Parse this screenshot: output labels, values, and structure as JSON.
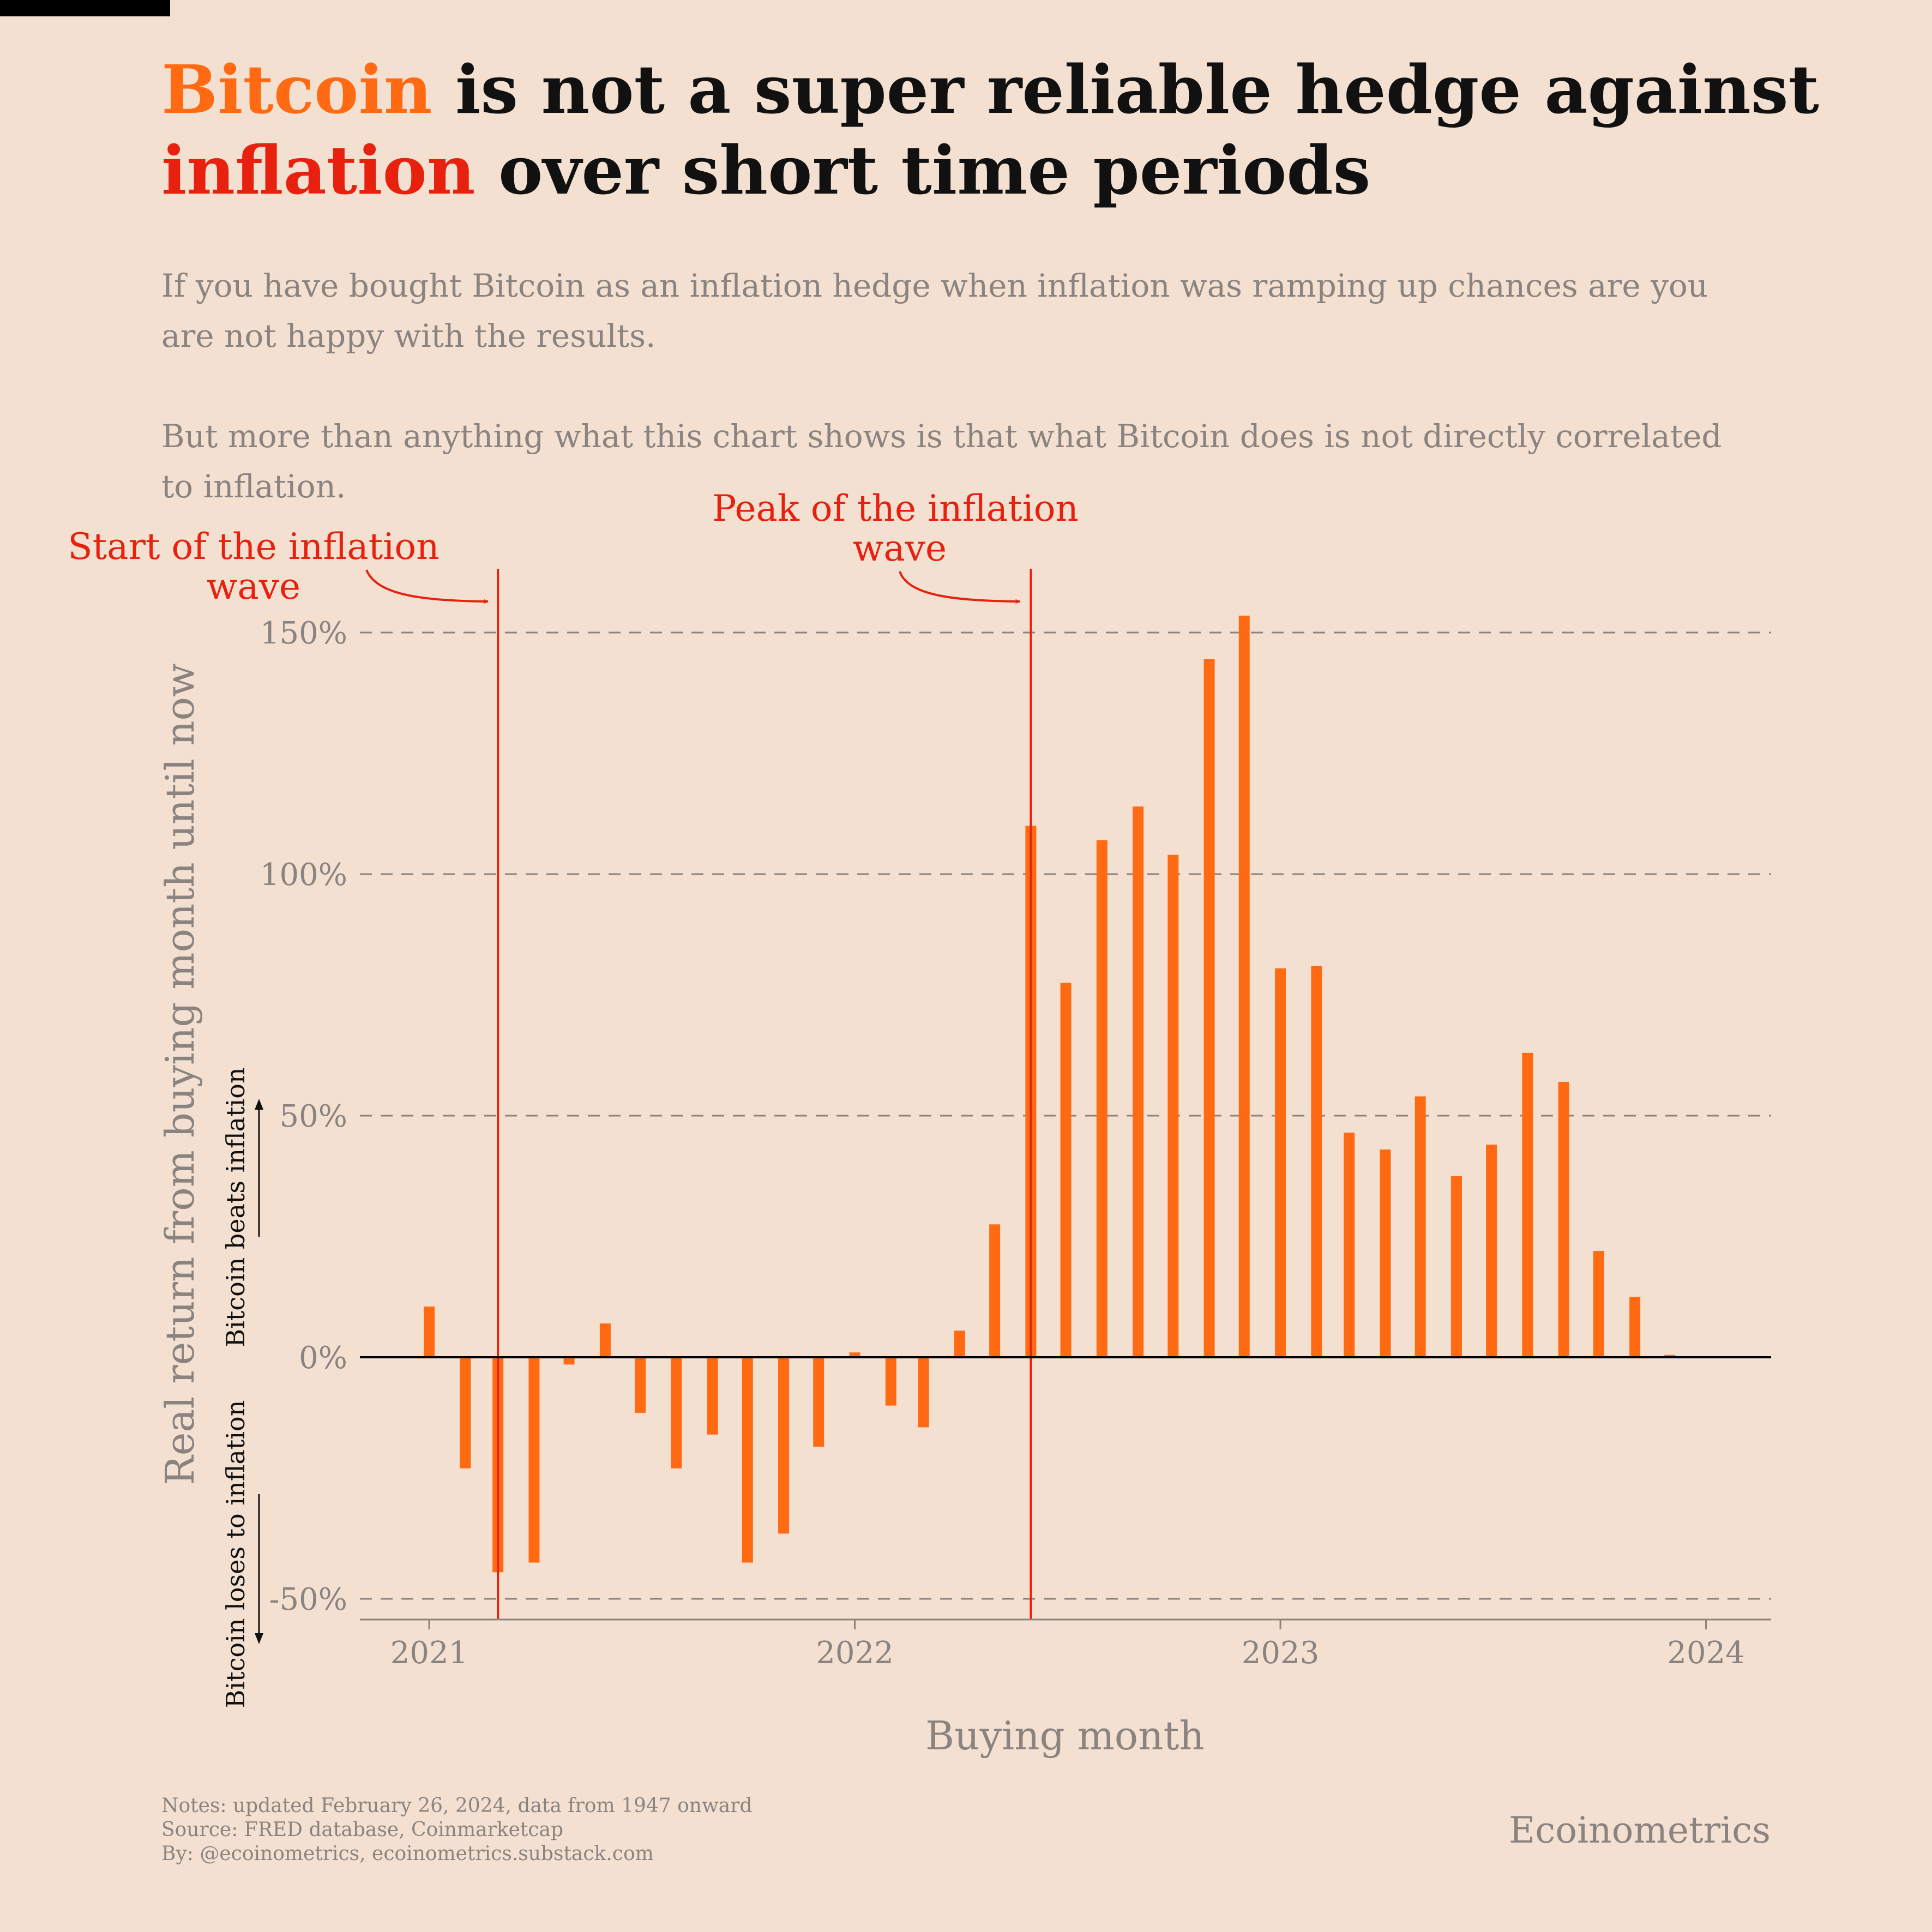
{
  "title": {
    "part1": "Bitcoin",
    "part2": " is not a super reliable hedge against ",
    "part3": "inflation",
    "part4": " over short time periods"
  },
  "subtitle": {
    "p1": "If you have bought Bitcoin as an inflation hedge when inflation was ramping up chances are you are not happy with the results.",
    "p2": "But more than anything what this chart shows is that what Bitcoin does is not directly correlated to inflation."
  },
  "annotations": {
    "start_line1": "Start of the inflation",
    "start_line2": "wave",
    "peak_line1": "Peak of the inflation",
    "peak_line2": "wave",
    "beats": "Bitcoin beats inflation",
    "loses": "Bitcoin loses to inflation"
  },
  "footer": {
    "notes": "Notes: updated February 26, 2024, data from 1947 onward",
    "source": "Source: FRED database, Coinmarketcap",
    "by": "By: @ecoinometrics, ecoinometrics.substack.com"
  },
  "brand": "Ecoinometrics",
  "colors": {
    "bar": "#ff6a13",
    "annotation": "#e8210f",
    "text_gray": "#8a8380",
    "background": "#f3e0d0"
  },
  "chart_data": {
    "type": "bar",
    "xlabel": "Buying month",
    "ylabel": "Real return from buying month until now",
    "ylim": [
      -55,
      165
    ],
    "yticks": [
      -50,
      0,
      50,
      100,
      150
    ],
    "ytick_labels": [
      "-50%",
      "0%",
      "50%",
      "100%",
      "150%"
    ],
    "xticks": [
      "2021",
      "2022",
      "2023",
      "2024"
    ],
    "xlim": [
      "2020-11-15",
      "2024-02-20"
    ],
    "grid": "horizontal dashed",
    "x": [
      "2021-01",
      "2021-02",
      "2021-03",
      "2021-04",
      "2021-05",
      "2021-06",
      "2021-07",
      "2021-08",
      "2021-09",
      "2021-10",
      "2021-11",
      "2021-12",
      "2022-01",
      "2022-02",
      "2022-03",
      "2022-04",
      "2022-05",
      "2022-06",
      "2022-07",
      "2022-08",
      "2022-09",
      "2022-10",
      "2022-11",
      "2022-12",
      "2023-01",
      "2023-02",
      "2023-03",
      "2023-04",
      "2023-05",
      "2023-06",
      "2023-07",
      "2023-08",
      "2023-09",
      "2023-10",
      "2023-11",
      "2023-12"
    ],
    "values": [
      10.5,
      -23,
      -44.5,
      -42.5,
      -1.5,
      7,
      -11.5,
      -23,
      -16,
      -42.5,
      -36.5,
      -18.5,
      1,
      -10,
      -14.5,
      5.5,
      27.5,
      110,
      77.5,
      107,
      114,
      104,
      144.5,
      153.5,
      80.5,
      81,
      46.5,
      43,
      54,
      37.5,
      44,
      63,
      57,
      22,
      12.5,
      0.5
    ],
    "vlines": [
      {
        "x": "2021-03",
        "label": "Start of the inflation wave"
      },
      {
        "x": "2022-06",
        "label": "Peak of the inflation wave"
      }
    ]
  }
}
